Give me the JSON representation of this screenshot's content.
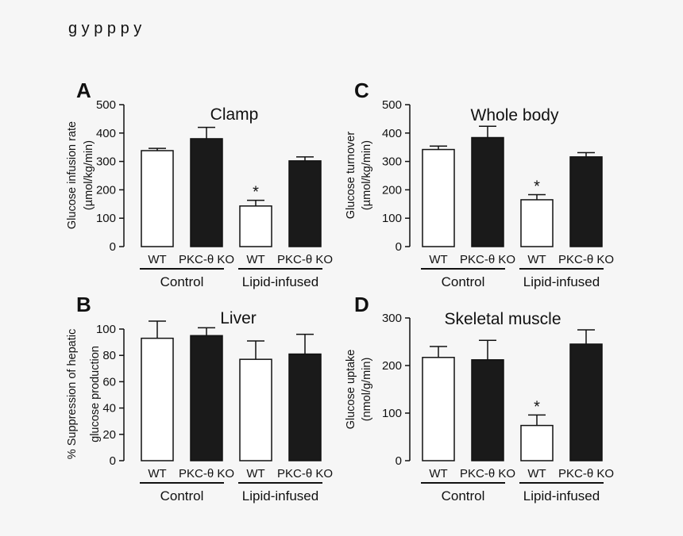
{
  "caption_fragment": "g                    y    p  p  p   y",
  "group_labels": [
    "Control",
    "Lipid-infused"
  ],
  "chart_data": [
    {
      "panel": "A",
      "type": "bar",
      "title": "Clamp",
      "ylabel": "Glucose infusion rate (µmol/kg/min)",
      "ylabel_lines": [
        "Glucose infusion rate",
        "(µmol/kg/min)"
      ],
      "xlabel": "",
      "categories": [
        "WT",
        "PKC-θ  KO",
        "WT",
        "PKC-θ  KO"
      ],
      "groups": [
        "Control",
        "Control",
        "Lipid-infused",
        "Lipid-infused"
      ],
      "values": [
        338,
        380,
        143,
        302
      ],
      "errors": [
        8,
        40,
        20,
        14
      ],
      "bar_colors": [
        "#ffffff",
        "#1a1a1a",
        "#ffffff",
        "#1a1a1a"
      ],
      "significance": [
        null,
        null,
        "*",
        null
      ],
      "ylim": [
        0,
        500
      ],
      "yticks": [
        "0",
        "100",
        "200",
        "300",
        "400",
        "500"
      ],
      "grid": false
    },
    {
      "panel": "C",
      "type": "bar",
      "title": "Whole body",
      "ylabel": "Glucose turnover (µmol/kg/min)",
      "ylabel_lines": [
        "Glucose turnover",
        "(µmol/kg/min)"
      ],
      "xlabel": "",
      "categories": [
        "WT",
        "PKC-θ  KO",
        "WT",
        "PKC-θ  KO"
      ],
      "groups": [
        "Control",
        "Control",
        "Lipid-infused",
        "Lipid-infused"
      ],
      "values": [
        342,
        384,
        165,
        316
      ],
      "errors": [
        12,
        40,
        18,
        15
      ],
      "bar_colors": [
        "#ffffff",
        "#1a1a1a",
        "#ffffff",
        "#1a1a1a"
      ],
      "significance": [
        null,
        null,
        "*",
        null
      ],
      "ylim": [
        0,
        500
      ],
      "yticks": [
        "0",
        "100",
        "200",
        "300",
        "400",
        "500"
      ],
      "grid": false
    },
    {
      "panel": "B",
      "type": "bar",
      "title": "Liver",
      "ylabel": "% Suppression of hepatic glucose production",
      "ylabel_lines": [
        "% Suppression of hepatic",
        "glucose production"
      ],
      "xlabel": "",
      "categories": [
        "WT",
        "PKC-θ  KO",
        "WT",
        "PKC-θ  KO"
      ],
      "groups": [
        "Control",
        "Control",
        "Lipid-infused",
        "Lipid-infused"
      ],
      "values": [
        93,
        95,
        77,
        81
      ],
      "errors": [
        13,
        6,
        14,
        15
      ],
      "bar_colors": [
        "#ffffff",
        "#1a1a1a",
        "#ffffff",
        "#1a1a1a"
      ],
      "significance": [
        null,
        null,
        null,
        null
      ],
      "ylim": [
        0,
        110
      ],
      "yticks": [
        "0",
        "20",
        "40",
        "60",
        "80",
        "100"
      ],
      "ytick_values": [
        0,
        20,
        40,
        60,
        80,
        100
      ],
      "grid": false
    },
    {
      "panel": "D",
      "type": "bar",
      "title": "Skeletal muscle",
      "ylabel": "Glucose uptake (nmol/g/min)",
      "ylabel_lines": [
        "Glucose uptake",
        "(nmol/g/min)"
      ],
      "xlabel": "",
      "categories": [
        "WT",
        "PKC-θ  KO",
        "WT",
        "PKC-θ  KO"
      ],
      "groups": [
        "Control",
        "Control",
        "Lipid-infused",
        "Lipid-infused"
      ],
      "values": [
        217,
        212,
        74,
        245
      ],
      "errors": [
        23,
        41,
        22,
        30
      ],
      "bar_colors": [
        "#ffffff",
        "#1a1a1a",
        "#ffffff",
        "#1a1a1a"
      ],
      "significance": [
        null,
        null,
        "*",
        null
      ],
      "ylim": [
        0,
        300
      ],
      "yticks": [
        "0",
        "100",
        "200",
        "300"
      ],
      "ytick_values": [
        0,
        100,
        200,
        300
      ],
      "grid": false
    }
  ]
}
